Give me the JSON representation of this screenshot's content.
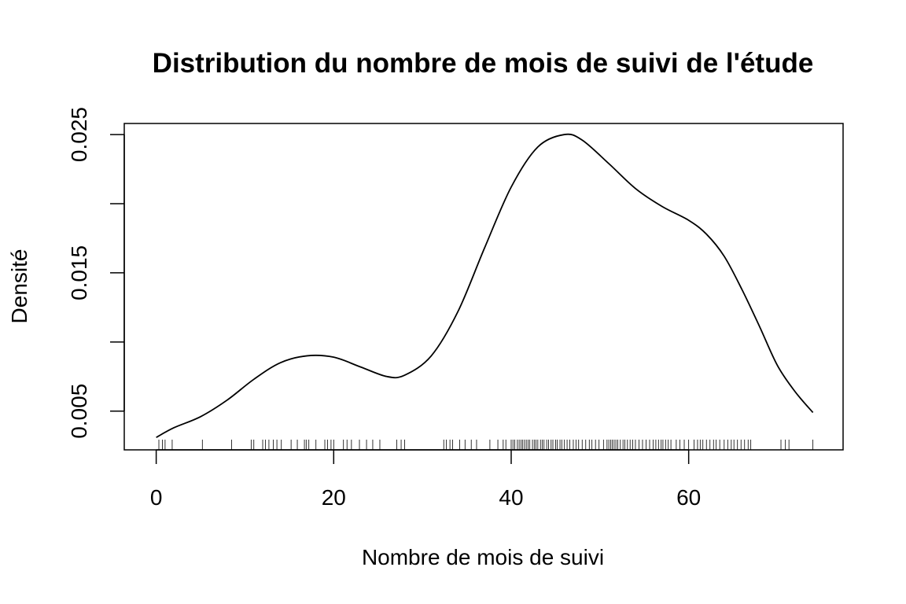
{
  "chart_data": {
    "type": "line",
    "title": "Distribution du nombre de mois de suivi de l'étude",
    "xlabel": "Nombre de mois de suivi",
    "ylabel": "Densité",
    "xlim": [
      -3.6,
      77.4
    ],
    "ylim": [
      0.0022,
      0.0258
    ],
    "x_ticks": [
      0,
      20,
      40,
      60
    ],
    "x_tick_labels": [
      "0",
      "20",
      "40",
      "60"
    ],
    "y_ticks": [
      0.005,
      0.01,
      0.015,
      0.02,
      0.025
    ],
    "y_tick_labels": [
      "0.005",
      "",
      "0.015",
      "",
      "0.025"
    ],
    "grid": false,
    "series": [
      {
        "x": [
          0,
          2,
          5,
          8,
          11,
          14,
          17,
          20,
          23,
          26,
          28,
          31,
          34,
          37,
          40,
          43,
          46,
          48,
          51,
          54,
          57,
          60,
          62,
          64,
          66,
          68,
          70,
          72,
          74
        ],
        "y": [
          0.0031,
          0.0038,
          0.0046,
          0.0058,
          0.0073,
          0.0085,
          0.009,
          0.0089,
          0.0082,
          0.0075,
          0.0076,
          0.009,
          0.0122,
          0.0168,
          0.0212,
          0.0241,
          0.025,
          0.0246,
          0.0229,
          0.0211,
          0.0198,
          0.0188,
          0.0178,
          0.0162,
          0.0138,
          0.0111,
          0.0083,
          0.0064,
          0.0049
        ]
      }
    ],
    "rug": [
      0.3,
      0.7,
      1.0,
      1.8,
      5.2,
      8.5,
      10.7,
      11.0,
      12.0,
      12.3,
      12.7,
      13.2,
      13.6,
      14.1,
      15.2,
      15.9,
      16.7,
      16.9,
      17.2,
      18.0,
      19.0,
      19.3,
      19.7,
      20.0,
      21.1,
      21.5,
      22.0,
      22.9,
      23.7,
      24.4,
      25.2,
      27.1,
      27.6,
      28.0,
      32.4,
      32.7,
      33.1,
      33.4,
      34.2,
      34.8,
      35.5,
      36.1,
      37.6,
      38.5,
      39.1,
      39.4,
      40.0,
      40.2,
      40.4,
      40.7,
      40.9,
      41.1,
      41.3,
      41.5,
      41.7,
      41.9,
      42.1,
      42.4,
      42.6,
      42.8,
      43.0,
      43.3,
      43.5,
      43.7,
      44.0,
      44.2,
      44.5,
      44.7,
      45.0,
      45.2,
      45.5,
      45.7,
      46.0,
      46.3,
      46.6,
      47.0,
      47.3,
      47.6,
      48.0,
      48.4,
      48.8,
      49.1,
      49.5,
      49.9,
      50.4,
      50.8,
      51.0,
      51.2,
      51.4,
      51.6,
      51.8,
      52.0,
      52.3,
      52.6,
      52.8,
      53.1,
      53.4,
      53.7,
      54.0,
      54.4,
      54.8,
      55.2,
      55.6,
      56.0,
      56.3,
      56.6,
      56.9,
      57.1,
      57.4,
      57.7,
      58.0,
      58.6,
      59.0,
      59.5,
      60.0,
      60.6,
      61.0,
      61.3,
      61.6,
      62.0,
      62.4,
      62.8,
      63.1,
      63.5,
      64.0,
      64.4,
      64.8,
      65.1,
      65.5,
      65.9,
      66.3,
      66.7,
      67.0,
      70.4,
      70.9,
      71.3,
      74.0
    ]
  }
}
